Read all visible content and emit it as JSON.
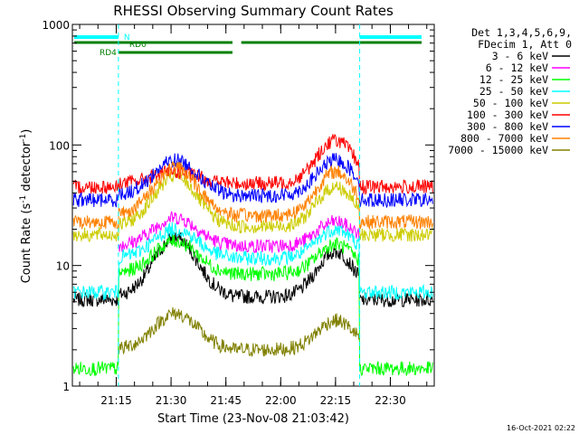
{
  "chart_data": {
    "type": "line",
    "title": "RHESSI Observing Summary Count Rates",
    "xlabel": "Start Time (23-Nov-08 21:03:42)",
    "ylabel_main": "Count Rate (s",
    "ylabel_sup1": "-1",
    "ylabel_mid": " detector",
    "ylabel_sup2": "-1",
    "ylabel_end": ")",
    "y_scale": "log",
    "ylim": [
      1,
      1000
    ],
    "xlim_minutes": [
      21.05,
      22.7
    ],
    "y_ticks": [
      {
        "value": 1,
        "label": "1"
      },
      {
        "value": 10,
        "label": "10"
      },
      {
        "value": 100,
        "label": "100"
      },
      {
        "value": 1000,
        "label": "1000"
      }
    ],
    "x_ticks": [
      {
        "value": 21.25,
        "label": "21:15"
      },
      {
        "value": 21.5,
        "label": "21:30"
      },
      {
        "value": 21.75,
        "label": "21:45"
      },
      {
        "value": 22.0,
        "label": "22:00"
      },
      {
        "value": 22.25,
        "label": "22:15"
      },
      {
        "value": 22.5,
        "label": "22:30"
      }
    ],
    "legend_header": [
      "Det 1,3,4,5,6,9,",
      "FDecim 1, Att 0"
    ],
    "series": [
      {
        "name": "3 - 6 keV",
        "color": "#000000",
        "night": 5.2,
        "base": 5.5,
        "peak1": 17,
        "peak2": 13
      },
      {
        "name": "6 - 12 keV",
        "color": "#ff00ff",
        "night": 0,
        "base": 14.5,
        "peak1": 25,
        "peak2": 23
      },
      {
        "name": "12 - 25 keV",
        "color": "#00ff00",
        "night": 1.4,
        "base": 8.5,
        "peak1": 16,
        "peak2": 15
      },
      {
        "name": "25 - 50 keV",
        "color": "#00ffff",
        "night": 6,
        "base": 11.5,
        "peak1": 20,
        "peak2": 20
      },
      {
        "name": "50 - 100 keV",
        "color": "#cccc00",
        "night": 18,
        "base": 21,
        "peak1": 55,
        "peak2": 45
      },
      {
        "name": "100 - 300 keV",
        "color": "#ff0000",
        "night": 45,
        "base": 48,
        "peak1": 60,
        "peak2": 110
      },
      {
        "name": "300 - 800 keV",
        "color": "#0000ff",
        "night": 35,
        "base": 38,
        "peak1": 75,
        "peak2": 75
      },
      {
        "name": "800 - 7000 keV",
        "color": "#ff8000",
        "night": 23,
        "base": 26,
        "peak1": 65,
        "peak2": 60
      },
      {
        "name": "7000 - 15000 keV",
        "color": "#808000",
        "night": 0,
        "base": 2,
        "peak1": 4,
        "peak2": 3.5
      }
    ],
    "flags": [
      {
        "label": "N",
        "color": "#00ffff"
      },
      {
        "label": "RD0",
        "color": "#008000"
      },
      {
        "label": "RD4",
        "color": "#008000"
      }
    ],
    "timestamp": "16-Oct-2021 02:22"
  }
}
